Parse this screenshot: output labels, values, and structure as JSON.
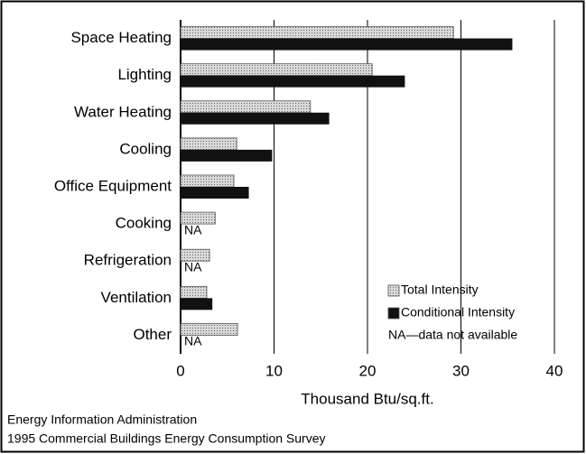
{
  "chart_data": {
    "type": "bar",
    "orientation": "horizontal",
    "categories": [
      "Space Heating",
      "Lighting",
      "Water Heating",
      "Cooling",
      "Office Equipment",
      "Cooking",
      "Refrigeration",
      "Ventilation",
      "Other"
    ],
    "series": [
      {
        "name": "Total Intensity",
        "color": "#c4c4c4",
        "values": [
          29.2,
          20.5,
          13.9,
          6.0,
          5.7,
          3.7,
          3.1,
          2.8,
          6.1
        ]
      },
      {
        "name": "Conditional Intensity",
        "color": "#111111",
        "values": [
          35.5,
          24.0,
          15.9,
          9.8,
          7.3,
          null,
          null,
          3.4,
          null
        ],
        "value_labels": [
          null,
          null,
          null,
          null,
          null,
          "NA",
          "NA",
          null,
          "NA"
        ]
      }
    ],
    "note": "NA—data not available",
    "x_label": "Thousand Btu/sq.ft.",
    "xlim": [
      0,
      40
    ],
    "xticks": [
      0,
      10,
      20,
      30,
      40
    ],
    "grid": true,
    "source": [
      "Energy Information Administration",
      "1995 Commercial Buildings Energy Consumption Survey"
    ]
  }
}
